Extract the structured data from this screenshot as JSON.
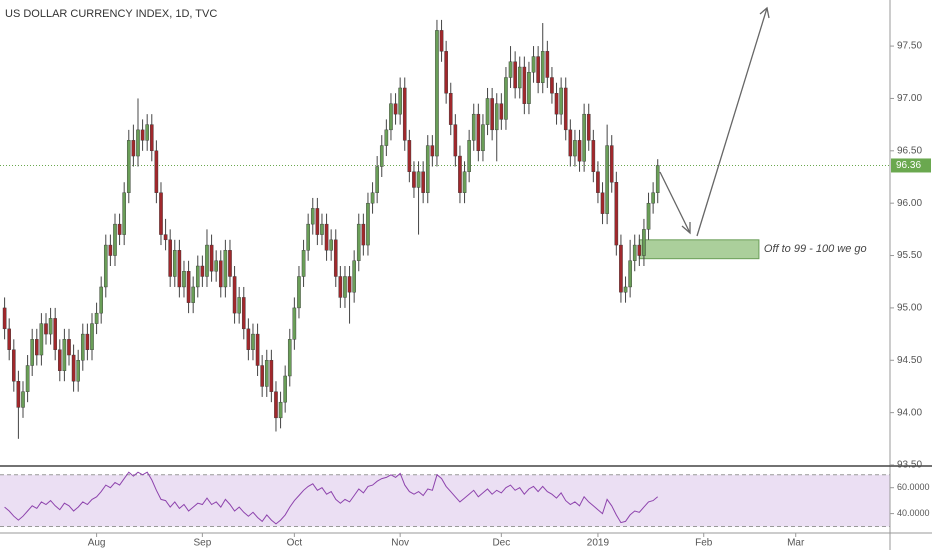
{
  "chart_data": [
    {
      "type": "candlestick",
      "title": "US DOLLAR CURRENCY INDEX, 1D, TVC",
      "up_color": "#6a9e58",
      "down_color": "#a0282c",
      "wick_color": "#444444",
      "xlim": [
        -1,
        192.5
      ],
      "ylim": [
        93.5,
        97.94
      ],
      "xticks": [
        {
          "value": 20,
          "label": "Aug"
        },
        {
          "value": 43,
          "label": "Sep"
        },
        {
          "value": 63,
          "label": "Oct"
        },
        {
          "value": 86,
          "label": "Nov"
        },
        {
          "value": 108,
          "label": "Dec"
        },
        {
          "value": 129,
          "label": "2019"
        },
        {
          "value": 152,
          "label": "Feb"
        },
        {
          "value": 172,
          "label": "Mar"
        }
      ],
      "yticks": [
        {
          "value": 93.5,
          "label": "93.50"
        },
        {
          "value": 94,
          "label": "94.00"
        },
        {
          "value": 94.5,
          "label": "94.50"
        },
        {
          "value": 95,
          "label": "95.00"
        },
        {
          "value": 95.5,
          "label": "95.50"
        },
        {
          "value": 96,
          "label": "96.00"
        },
        {
          "value": 96.5,
          "label": "96.50"
        },
        {
          "value": 97,
          "label": "97.00"
        },
        {
          "value": 97.5,
          "label": "97.50"
        }
      ],
      "last_price": 96.36,
      "last_price_color": "#6aa84f",
      "zone": {
        "x": [
          138,
          164
        ],
        "y": [
          95.47,
          95.65
        ],
        "color": "#8fbf7a",
        "text": "Off to 99 - 100 we go"
      },
      "candles": [
        [
          95.0,
          95.1,
          94.7,
          94.8
        ],
        [
          94.8,
          94.9,
          94.5,
          94.6
        ],
        [
          94.6,
          94.7,
          94.2,
          94.3
        ],
        [
          94.3,
          94.4,
          93.75,
          94.05
        ],
        [
          94.05,
          94.3,
          93.95,
          94.2
        ],
        [
          94.2,
          94.55,
          94.1,
          94.45
        ],
        [
          94.45,
          94.8,
          94.35,
          94.7
        ],
        [
          94.7,
          94.8,
          94.45,
          94.55
        ],
        [
          94.55,
          94.95,
          94.45,
          94.85
        ],
        [
          94.85,
          94.95,
          94.65,
          94.75
        ],
        [
          94.75,
          95.0,
          94.65,
          94.9
        ],
        [
          94.9,
          95.0,
          94.5,
          94.6
        ],
        [
          94.6,
          94.7,
          94.3,
          94.4
        ],
        [
          94.4,
          94.8,
          94.3,
          94.7
        ],
        [
          94.7,
          94.8,
          94.45,
          94.55
        ],
        [
          94.55,
          94.65,
          94.2,
          94.3
        ],
        [
          94.3,
          94.6,
          94.2,
          94.5
        ],
        [
          94.5,
          94.85,
          94.4,
          94.75
        ],
        [
          94.75,
          94.85,
          94.5,
          94.6
        ],
        [
          94.6,
          94.95,
          94.5,
          94.85
        ],
        [
          94.85,
          95.05,
          94.75,
          94.95
        ],
        [
          94.95,
          95.3,
          94.85,
          95.2
        ],
        [
          95.2,
          95.7,
          95.1,
          95.6
        ],
        [
          95.6,
          95.7,
          95.4,
          95.5
        ],
        [
          95.5,
          95.9,
          95.4,
          95.8
        ],
        [
          95.8,
          95.9,
          95.6,
          95.7
        ],
        [
          95.7,
          96.2,
          95.6,
          96.1
        ],
        [
          96.1,
          96.7,
          96.0,
          96.6
        ],
        [
          96.6,
          96.75,
          96.35,
          96.45
        ],
        [
          96.45,
          97.0,
          96.35,
          96.7
        ],
        [
          96.7,
          96.8,
          96.5,
          96.6
        ],
        [
          96.6,
          96.85,
          96.5,
          96.75
        ],
        [
          96.75,
          96.85,
          96.4,
          96.5
        ],
        [
          96.5,
          96.6,
          96.0,
          96.1
        ],
        [
          96.1,
          96.2,
          95.6,
          95.7
        ],
        [
          95.7,
          95.85,
          95.55,
          95.65
        ],
        [
          95.65,
          95.75,
          95.2,
          95.3
        ],
        [
          95.3,
          95.65,
          95.2,
          95.55
        ],
        [
          95.55,
          95.65,
          95.1,
          95.2
        ],
        [
          95.2,
          95.45,
          95.1,
          95.35
        ],
        [
          95.35,
          95.45,
          94.95,
          95.05
        ],
        [
          95.05,
          95.3,
          94.95,
          95.2
        ],
        [
          95.2,
          95.5,
          95.1,
          95.4
        ],
        [
          95.4,
          95.5,
          95.2,
          95.3
        ],
        [
          95.3,
          95.75,
          95.2,
          95.6
        ],
        [
          95.6,
          95.7,
          95.25,
          95.35
        ],
        [
          95.35,
          95.55,
          95.25,
          95.45
        ],
        [
          95.45,
          95.55,
          95.1,
          95.2
        ],
        [
          95.2,
          95.65,
          95.1,
          95.55
        ],
        [
          95.55,
          95.65,
          95.2,
          95.3
        ],
        [
          95.3,
          95.4,
          94.85,
          94.95
        ],
        [
          94.95,
          95.2,
          94.85,
          95.1
        ],
        [
          95.1,
          95.2,
          94.7,
          94.8
        ],
        [
          94.8,
          94.9,
          94.5,
          94.6
        ],
        [
          94.6,
          94.85,
          94.5,
          94.75
        ],
        [
          94.75,
          94.85,
          94.35,
          94.45
        ],
        [
          94.45,
          94.55,
          94.15,
          94.25
        ],
        [
          94.25,
          94.6,
          94.15,
          94.5
        ],
        [
          94.5,
          94.6,
          94.1,
          94.2
        ],
        [
          94.2,
          94.3,
          93.82,
          93.95
        ],
        [
          93.95,
          94.2,
          93.85,
          94.1
        ],
        [
          94.1,
          94.45,
          94.0,
          94.35
        ],
        [
          94.35,
          94.8,
          94.25,
          94.7
        ],
        [
          94.7,
          95.1,
          94.6,
          95.0
        ],
        [
          95.0,
          95.4,
          94.9,
          95.3
        ],
        [
          95.3,
          95.65,
          95.2,
          95.55
        ],
        [
          95.55,
          95.9,
          95.45,
          95.8
        ],
        [
          95.8,
          96.05,
          95.7,
          95.95
        ],
        [
          95.95,
          96.05,
          95.6,
          95.7
        ],
        [
          95.7,
          95.9,
          95.6,
          95.8
        ],
        [
          95.8,
          95.9,
          95.45,
          95.55
        ],
        [
          95.55,
          95.75,
          95.45,
          95.65
        ],
        [
          95.65,
          95.75,
          95.2,
          95.3
        ],
        [
          95.3,
          95.4,
          95.0,
          95.1
        ],
        [
          95.1,
          95.4,
          95.0,
          95.3
        ],
        [
          95.3,
          95.4,
          94.85,
          95.15
        ],
        [
          95.15,
          95.55,
          95.05,
          95.45
        ],
        [
          95.45,
          95.9,
          95.35,
          95.8
        ],
        [
          95.8,
          95.9,
          95.5,
          95.6
        ],
        [
          95.6,
          96.1,
          95.5,
          96.0
        ],
        [
          96.0,
          96.2,
          95.9,
          96.1
        ],
        [
          96.1,
          96.45,
          96.0,
          96.35
        ],
        [
          96.35,
          96.65,
          96.25,
          96.55
        ],
        [
          96.55,
          96.8,
          96.45,
          96.7
        ],
        [
          96.7,
          97.05,
          96.6,
          96.95
        ],
        [
          96.95,
          97.05,
          96.75,
          96.85
        ],
        [
          96.85,
          97.2,
          96.75,
          97.1
        ],
        [
          97.1,
          97.2,
          96.5,
          96.6
        ],
        [
          96.6,
          96.7,
          96.2,
          96.3
        ],
        [
          96.3,
          96.4,
          96.05,
          96.15
        ],
        [
          96.15,
          96.4,
          95.7,
          96.3
        ],
        [
          96.3,
          96.4,
          96.0,
          96.1
        ],
        [
          96.1,
          96.65,
          96.0,
          96.55
        ],
        [
          96.55,
          96.65,
          96.35,
          96.45
        ],
        [
          96.45,
          97.75,
          96.35,
          97.65
        ],
        [
          97.65,
          97.75,
          97.35,
          97.45
        ],
        [
          97.45,
          97.55,
          96.95,
          97.05
        ],
        [
          97.05,
          97.15,
          96.65,
          96.75
        ],
        [
          96.75,
          96.85,
          96.35,
          96.45
        ],
        [
          96.45,
          96.55,
          96.0,
          96.1
        ],
        [
          96.1,
          96.4,
          96.0,
          96.3
        ],
        [
          96.3,
          96.7,
          96.2,
          96.6
        ],
        [
          96.6,
          96.95,
          96.5,
          96.85
        ],
        [
          96.85,
          96.95,
          96.4,
          96.5
        ],
        [
          96.5,
          96.85,
          96.4,
          96.75
        ],
        [
          96.75,
          97.1,
          96.65,
          97.0
        ],
        [
          97.0,
          97.1,
          96.6,
          96.7
        ],
        [
          96.7,
          97.05,
          96.4,
          96.95
        ],
        [
          96.95,
          97.05,
          96.7,
          96.8
        ],
        [
          96.8,
          97.3,
          96.7,
          97.2
        ],
        [
          97.2,
          97.5,
          97.1,
          97.35
        ],
        [
          97.35,
          97.45,
          97.0,
          97.1
        ],
        [
          97.1,
          97.4,
          97.0,
          97.3
        ],
        [
          97.3,
          97.4,
          96.85,
          96.95
        ],
        [
          96.95,
          97.35,
          96.85,
          97.25
        ],
        [
          97.25,
          97.5,
          97.15,
          97.4
        ],
        [
          97.4,
          97.5,
          97.05,
          97.15
        ],
        [
          97.15,
          97.72,
          97.05,
          97.45
        ],
        [
          97.45,
          97.55,
          97.1,
          97.2
        ],
        [
          97.2,
          97.3,
          96.95,
          97.05
        ],
        [
          97.05,
          97.15,
          96.75,
          96.85
        ],
        [
          96.85,
          97.2,
          96.75,
          97.1
        ],
        [
          97.1,
          97.2,
          96.6,
          96.7
        ],
        [
          96.7,
          96.8,
          96.35,
          96.45
        ],
        [
          96.45,
          96.7,
          96.35,
          96.6
        ],
        [
          96.6,
          96.7,
          96.3,
          96.4
        ],
        [
          96.4,
          96.95,
          96.3,
          96.85
        ],
        [
          96.85,
          96.95,
          96.5,
          96.6
        ],
        [
          96.6,
          96.7,
          96.2,
          96.3
        ],
        [
          96.3,
          96.4,
          96.0,
          96.1
        ],
        [
          96.1,
          96.2,
          95.8,
          95.9
        ],
        [
          95.9,
          96.75,
          95.8,
          96.55
        ],
        [
          96.55,
          96.65,
          96.1,
          96.2
        ],
        [
          96.2,
          96.3,
          95.5,
          95.6
        ],
        [
          95.6,
          95.7,
          95.05,
          95.15
        ],
        [
          95.15,
          95.3,
          95.05,
          95.2
        ],
        [
          95.2,
          95.65,
          95.1,
          95.45
        ],
        [
          95.45,
          95.7,
          95.35,
          95.6
        ],
        [
          95.6,
          95.7,
          95.4,
          95.5
        ],
        [
          95.5,
          95.85,
          95.4,
          95.75
        ],
        [
          95.75,
          96.1,
          95.65,
          96.0
        ],
        [
          96.0,
          96.2,
          95.9,
          96.1
        ],
        [
          96.1,
          96.42,
          96.0,
          96.36
        ]
      ]
    },
    {
      "type": "line",
      "color": "#8e44ad",
      "band_color": "#ebdff3",
      "xlim": [
        -1,
        192.5
      ],
      "ylim": [
        25,
        76
      ],
      "bands": [
        30,
        70
      ],
      "yticks": [
        {
          "value": 60,
          "label": "60.0000"
        },
        {
          "value": 40,
          "label": "40.0000"
        }
      ],
      "values": [
        45,
        42,
        38,
        35,
        38,
        42,
        46,
        44,
        49,
        47,
        50,
        46,
        43,
        48,
        46,
        42,
        45,
        49,
        47,
        51,
        53,
        57,
        62,
        60,
        64,
        62,
        67,
        72,
        69,
        72,
        70,
        72,
        66,
        58,
        51,
        50,
        45,
        49,
        44,
        47,
        42,
        45,
        48,
        47,
        52,
        47,
        49,
        45,
        51,
        47,
        42,
        45,
        41,
        38,
        41,
        37,
        34,
        39,
        35,
        32,
        35,
        39,
        45,
        50,
        54,
        58,
        61,
        63,
        58,
        60,
        55,
        57,
        51,
        48,
        51,
        49,
        54,
        59,
        56,
        61,
        62,
        65,
        67,
        68,
        70,
        68,
        71,
        62,
        57,
        55,
        57,
        54,
        59,
        58,
        70,
        67,
        61,
        57,
        53,
        49,
        52,
        55,
        58,
        53,
        56,
        59,
        55,
        58,
        56,
        60,
        62,
        58,
        60,
        55,
        59,
        61,
        57,
        61,
        57,
        55,
        52,
        56,
        50,
        47,
        49,
        46,
        53,
        49,
        46,
        43,
        40,
        51,
        46,
        39,
        33,
        34,
        39,
        42,
        41,
        45,
        49,
        50,
        53
      ]
    }
  ]
}
